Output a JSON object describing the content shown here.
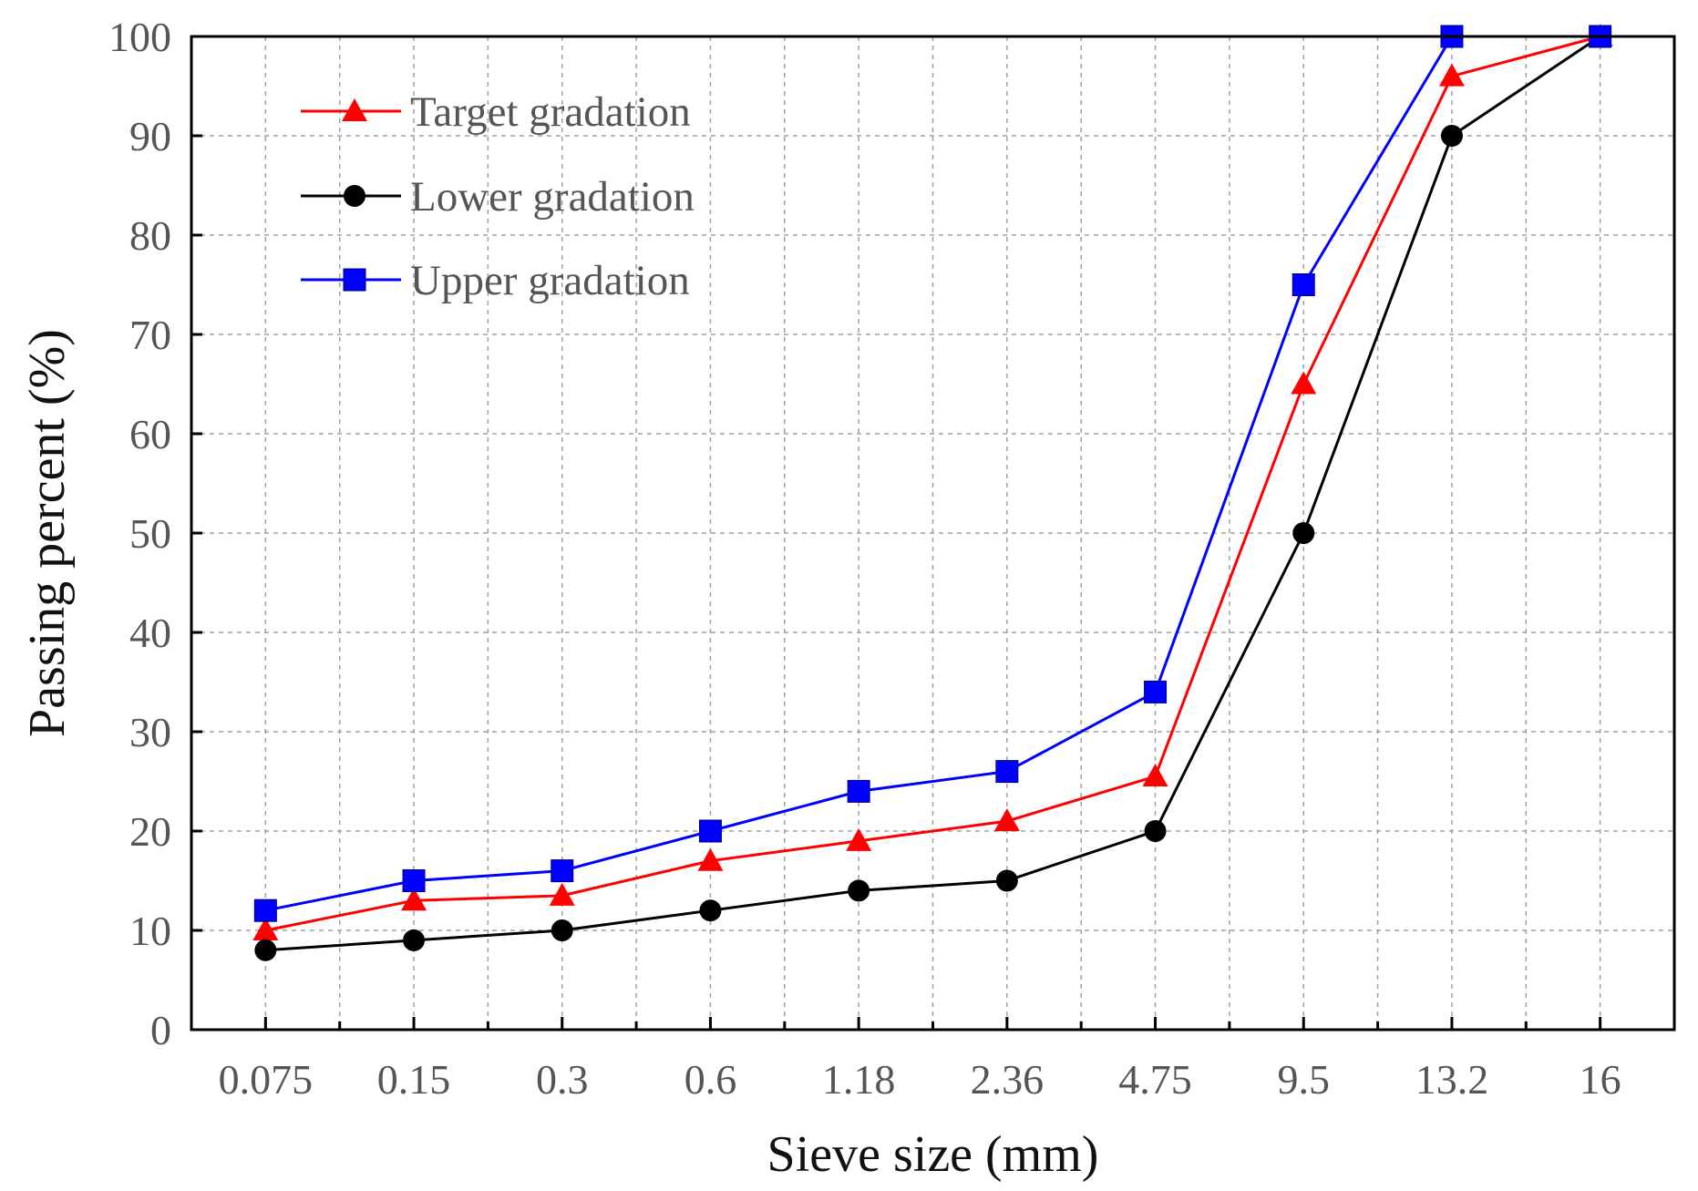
{
  "chart_data": {
    "type": "line",
    "title": "",
    "xlabel": "Sieve size (mm)",
    "ylabel": "Passing percent (%)",
    "categories": [
      "0.075",
      "0.15",
      "0.3",
      "0.6",
      "1.18",
      "2.36",
      "4.75",
      "9.5",
      "13.2",
      "16"
    ],
    "ylim": [
      0,
      100
    ],
    "yticks": [
      0,
      10,
      20,
      30,
      40,
      50,
      60,
      70,
      80,
      90,
      100
    ],
    "grid": true,
    "legend_position": "top-left",
    "series": [
      {
        "name": "Target gradation",
        "color": "#ff0000",
        "marker": "triangle",
        "values": [
          10,
          13,
          13.5,
          17,
          19,
          21,
          25.5,
          65,
          96,
          100
        ]
      },
      {
        "name": "Lower gradation",
        "color": "#000000",
        "marker": "circle",
        "values": [
          8,
          9,
          10,
          12,
          14,
          15,
          20,
          50,
          90,
          100
        ]
      },
      {
        "name": "Upper gradation",
        "color": "#0000ff",
        "marker": "square",
        "values": [
          12,
          15,
          16,
          20,
          24,
          26,
          34,
          75,
          100,
          100
        ]
      }
    ]
  }
}
